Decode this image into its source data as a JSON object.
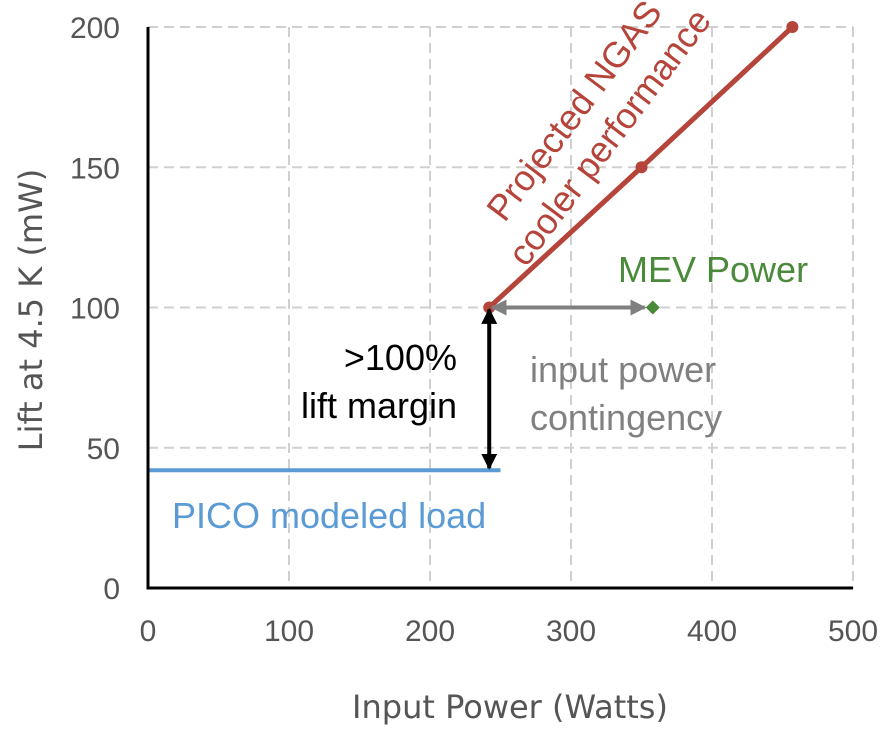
{
  "chart_data": {
    "type": "line",
    "xlabel": "Input Power (Watts)",
    "ylabel": "Lift at 4.5 K (mW)",
    "xlim": [
      0,
      500
    ],
    "ylim": [
      0,
      200
    ],
    "xticks": [
      "0",
      "100",
      "200",
      "300",
      "400",
      "500"
    ],
    "yticks": [
      "0",
      "50",
      "100",
      "150",
      "200"
    ],
    "grid": true,
    "colors": {
      "ngas": "#b5443a",
      "mev": "#4a8a3a",
      "pico": "#5b9bd5",
      "contingency": "#808080",
      "margin": "#000000"
    },
    "series": [
      {
        "name": "Projected NGAS cooler performance",
        "points": [
          [
            242,
            100
          ],
          [
            350,
            150
          ],
          [
            457,
            200
          ]
        ]
      },
      {
        "name": "MEV Power",
        "points": [
          [
            358,
            100
          ]
        ]
      },
      {
        "name": "PICO modeled load",
        "points": [
          [
            0,
            42
          ],
          [
            250,
            42
          ]
        ]
      }
    ],
    "annotations": {
      "ngas_line1": "Projected NGAS",
      "ngas_line2": "cooler performance",
      "mev": "MEV Power",
      "margin_line1": ">100%",
      "margin_line2": "lift margin",
      "contingency_line1": "input power",
      "contingency_line2": "contingency",
      "pico": "PICO modeled load"
    },
    "margin_arrow": {
      "x": 242,
      "from": 42,
      "to": 100
    },
    "contingency_arrow": {
      "y": 100,
      "from": 242,
      "to": 358
    }
  }
}
